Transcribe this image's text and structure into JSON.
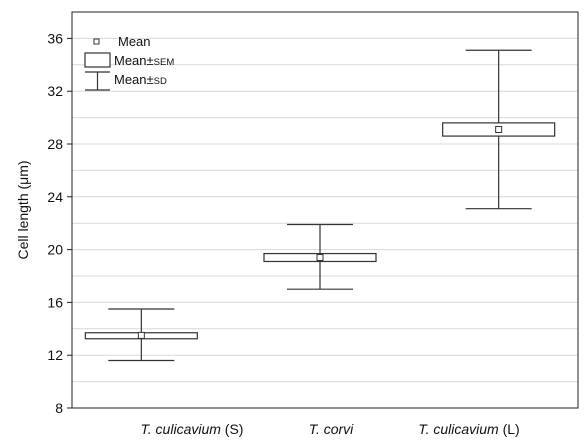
{
  "chart_data": {
    "type": "box",
    "ylabel": "Cell length (μm)",
    "xlabel": "",
    "ylim": [
      8,
      38
    ],
    "yticks": [
      8,
      12,
      16,
      20,
      24,
      28,
      32,
      36
    ],
    "grid": true,
    "legend_position": "top-left",
    "legend": [
      {
        "marker": "square",
        "label": "Mean",
        "small": ""
      },
      {
        "marker": "box",
        "label": "Mean±",
        "small": "SEM"
      },
      {
        "marker": "whisker",
        "label": "Mean±",
        "small": "SD"
      }
    ],
    "categories": [
      {
        "italic": "T. culicavium",
        "suffix": " (S)"
      },
      {
        "italic": "T. corvi",
        "suffix": ""
      },
      {
        "italic": "T. culicavium",
        "suffix": " (L)"
      }
    ],
    "series": [
      {
        "mean": 13.5,
        "sem_low": 13.3,
        "sem_high": 13.7,
        "sd_low": 11.6,
        "sd_high": 15.5
      },
      {
        "mean": 19.4,
        "sem_low": 19.1,
        "sem_high": 19.7,
        "sd_low": 17.0,
        "sd_high": 21.9
      },
      {
        "mean": 29.1,
        "sem_low": 28.6,
        "sem_high": 29.6,
        "sd_low": 23.1,
        "sd_high": 35.1
      }
    ]
  }
}
